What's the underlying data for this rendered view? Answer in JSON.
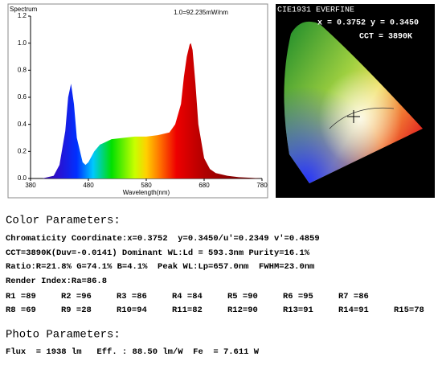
{
  "chart_data": {
    "type": "area",
    "title": "Spectrum",
    "annotation": "1.0=92.235mW/nm",
    "x_label": "Wavelength(nm)",
    "x": [
      380,
      400,
      420,
      430,
      440,
      445,
      450,
      455,
      460,
      470,
      475,
      480,
      490,
      500,
      520,
      540,
      560,
      580,
      600,
      620,
      630,
      640,
      645,
      650,
      655,
      657,
      660,
      665,
      670,
      680,
      690,
      700,
      720,
      740,
      760,
      780
    ],
    "values": [
      0,
      0,
      0.02,
      0.1,
      0.35,
      0.6,
      0.7,
      0.55,
      0.3,
      0.12,
      0.1,
      0.12,
      0.2,
      0.25,
      0.29,
      0.3,
      0.31,
      0.31,
      0.32,
      0.34,
      0.4,
      0.55,
      0.75,
      0.9,
      0.99,
      1.0,
      0.95,
      0.7,
      0.4,
      0.15,
      0.07,
      0.04,
      0.02,
      0.01,
      0.005,
      0
    ],
    "xlim": [
      380,
      780
    ],
    "xticks": [
      380,
      480,
      580,
      680,
      780
    ],
    "ylim": [
      0,
      1.2
    ],
    "yticks": [
      {
        "value": 0,
        "label": "0.0"
      },
      0.2,
      0.4,
      0.6,
      0.8,
      {
        "value": 1,
        "label": "1.0"
      },
      1.2
    ]
  },
  "cie": {
    "title": "CIE1931 EVERFINE",
    "coords": "x = 0.3752 y = 0.3450",
    "cct": "CCT = 3890K"
  },
  "color_parameters": {
    "heading": "Color Parameters:",
    "lines": [
      "Chromaticity Coordinate:x=0.3752  y=0.3450/u'=0.2349 v'=0.4859",
      "CCT=3890K(Duv=-0.0141) Dominant WL:Ld = 593.3nm Purity=16.1%",
      "Ratio:R=21.8% G=74.1% B=4.1%  Peak WL:Lp=657.0nm  FWHM=23.0nm",
      "Render Index:Ra=86.8"
    ],
    "render_rows": [
      [
        "R1 =89",
        "R2 =96",
        "R3 =86",
        "R4 =84",
        "R5 =90",
        "R6 =95",
        "R7 =86"
      ],
      [
        "R8 =69",
        "R9 =28",
        "R10=94",
        "R11=82",
        "R12=90",
        "R13=91",
        "R14=91",
        "R15=78"
      ]
    ]
  },
  "photo_parameters": {
    "heading": "Photo Parameters:",
    "line": "Flux  = 1938 lm   Eff. : 88.50 lm/W  Fe  = 7.611 W"
  }
}
